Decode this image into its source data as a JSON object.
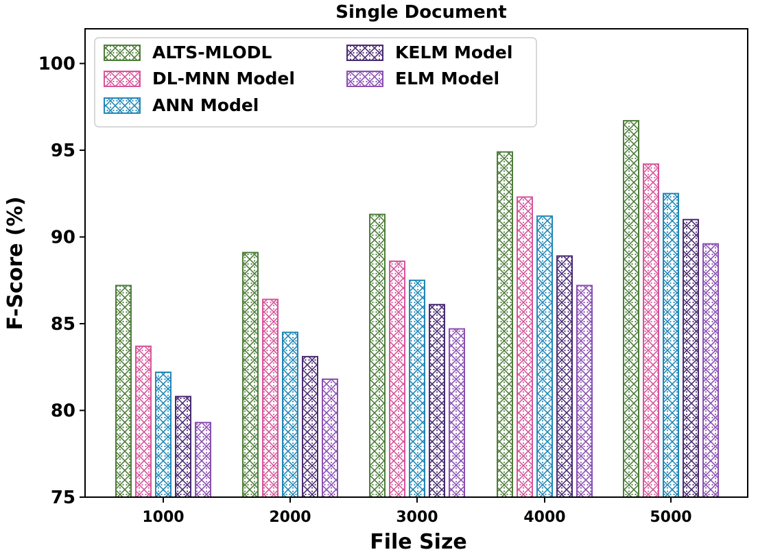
{
  "chart_data": {
    "type": "bar",
    "title": "Single Document",
    "xlabel": "File Size",
    "ylabel": "F-Score (%)",
    "categories": [
      "1000",
      "2000",
      "3000",
      "4000",
      "5000"
    ],
    "ylim": [
      75,
      102
    ],
    "yticks": [
      75,
      80,
      85,
      90,
      95,
      100
    ],
    "legend_position": "top-left",
    "series": [
      {
        "name": "ALTS-MLODL",
        "color": "#4e7d3a",
        "values": [
          87.2,
          89.1,
          91.3,
          94.9,
          96.7
        ]
      },
      {
        "name": "DL-MNN Model",
        "color": "#d6559a",
        "values": [
          83.7,
          86.4,
          88.6,
          92.3,
          94.2
        ]
      },
      {
        "name": "ANN Model",
        "color": "#1f87b8",
        "values": [
          82.2,
          84.5,
          87.5,
          91.2,
          92.5
        ]
      },
      {
        "name": "KELM Model",
        "color": "#4a2b72",
        "values": [
          80.8,
          83.1,
          86.1,
          88.9,
          91.0
        ]
      },
      {
        "name": "ELM Model",
        "color": "#8a4fb3",
        "values": [
          79.3,
          81.8,
          84.7,
          87.2,
          89.6
        ]
      }
    ]
  }
}
